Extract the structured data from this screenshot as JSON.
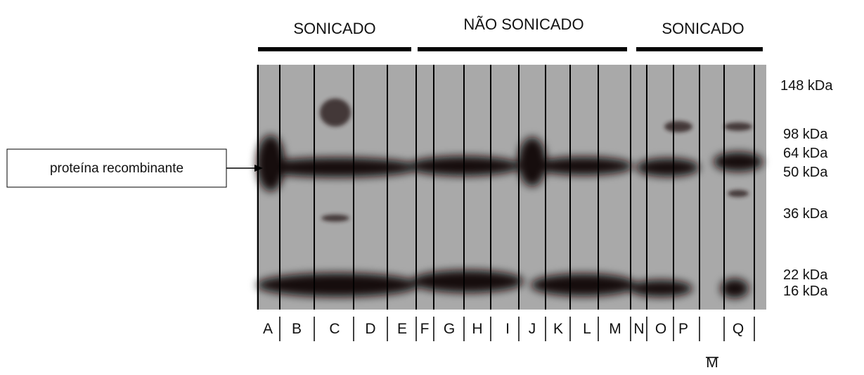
{
  "groups": [
    "SONICADO",
    "NÃO SONICADO",
    "SONICADO"
  ],
  "lanes": [
    "A",
    "B",
    "C",
    "D",
    "E",
    "F",
    "G",
    "H",
    "I",
    "J",
    "K",
    "L",
    "M",
    "N",
    "O",
    "P",
    "Q"
  ],
  "marker_lane": "M",
  "markers": [
    "148 kDa",
    "98 kDa",
    "64 kDa",
    "50 kDa",
    "36 kDa",
    "22 kDa",
    "16 kDa"
  ],
  "callout": "proteína recombinante"
}
